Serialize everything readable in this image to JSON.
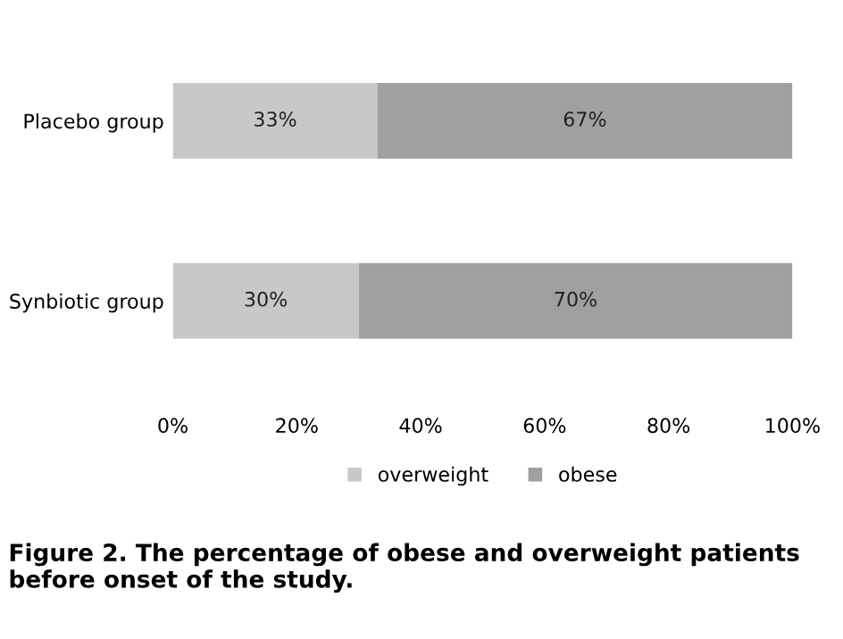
{
  "chart_data": {
    "type": "bar",
    "orientation": "horizontal",
    "stacked": true,
    "categories": [
      "Placebo group",
      "Synbiotic group"
    ],
    "series": [
      {
        "name": "overweight",
        "color": "#c8c8c8",
        "values": [
          33,
          30
        ],
        "value_labels": [
          "33%",
          "30%"
        ]
      },
      {
        "name": "obese",
        "color": "#a0a0a0",
        "values": [
          67,
          70
        ],
        "value_labels": [
          "67%",
          "70%"
        ]
      }
    ],
    "xlim": [
      0,
      100
    ],
    "xticks": [
      {
        "value": 0,
        "label": "0%"
      },
      {
        "value": 20,
        "label": "20%"
      },
      {
        "value": 40,
        "label": "40%"
      },
      {
        "value": 60,
        "label": "60%"
      },
      {
        "value": 80,
        "label": "80%"
      },
      {
        "value": 100,
        "label": "100%"
      }
    ],
    "grid": false,
    "legend": "bottom",
    "annotations": [
      "Figure 2. The percentage of obese and overweight patients before onset of the study."
    ]
  }
}
